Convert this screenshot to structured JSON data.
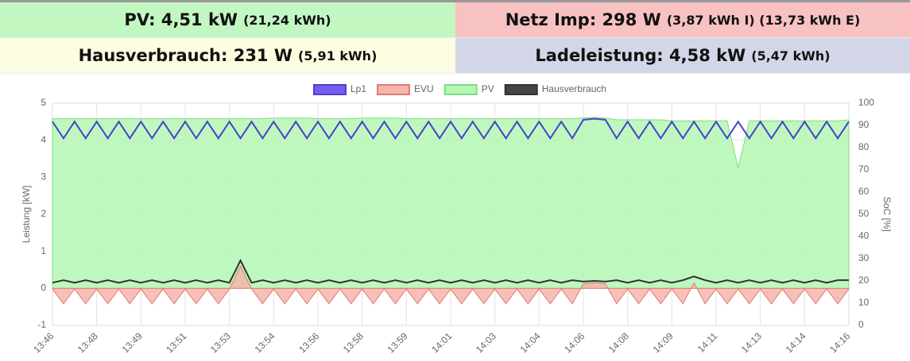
{
  "header": {
    "tiles": [
      {
        "main": "PV: 4,51 kW",
        "sub": "(21,24 kWh)",
        "color": "#c2f7c2"
      },
      {
        "main": "Netz Imp: 298 W",
        "sub": "(3,87 kWh I) (13,73 kWh E)",
        "color": "#f8c2c2"
      },
      {
        "main": "Hausverbrauch: 231 W",
        "sub": "(5,91 kWh)",
        "color": "#fdfde1"
      },
      {
        "main": "Ladeleistung: 4,58 kW",
        "sub": "(5,47 kWh)",
        "color": "#d2d6e6"
      }
    ]
  },
  "chart_data": {
    "type": "line",
    "ylabel": "Leistung [kW]",
    "y2label": "SoC [%]",
    "ylim": [
      -1,
      5
    ],
    "yticks": [
      -1,
      0,
      1,
      2,
      3,
      4,
      5
    ],
    "y2lim": [
      0,
      100
    ],
    "y2ticks": [
      0,
      10,
      20,
      30,
      40,
      50,
      60,
      70,
      80,
      90,
      100
    ],
    "grid": true,
    "legend": "top",
    "categories": [
      "13:46",
      null,
      null,
      null,
      "13:48",
      null,
      null,
      null,
      "13:49",
      null,
      null,
      null,
      "13:51",
      null,
      null,
      null,
      "13:53",
      null,
      null,
      null,
      "13:54",
      null,
      null,
      null,
      "13:56",
      null,
      null,
      null,
      "13:58",
      null,
      null,
      null,
      "13:59",
      null,
      null,
      null,
      "14:01",
      null,
      null,
      null,
      "14:03",
      null,
      null,
      null,
      "14:04",
      null,
      null,
      null,
      "14:06",
      null,
      null,
      null,
      "14:08",
      null,
      null,
      null,
      "14:09",
      null,
      null,
      null,
      "14:11",
      null,
      null,
      null,
      "14:13",
      null,
      null,
      null,
      "14:14",
      null,
      null,
      null,
      "14:16"
    ],
    "series": [
      {
        "name": "PV",
        "color": "#7fdc7f",
        "fill": "#b3f7b3",
        "area": true,
        "legend_order": 2,
        "values": [
          4.58,
          4.58,
          4.58,
          4.58,
          4.58,
          4.58,
          4.58,
          4.58,
          4.58,
          4.58,
          4.58,
          4.58,
          4.58,
          4.58,
          4.58,
          4.58,
          4.58,
          4.58,
          4.58,
          4.58,
          4.6,
          4.6,
          4.6,
          4.6,
          4.58,
          4.58,
          4.58,
          4.58,
          4.6,
          4.6,
          4.6,
          4.6,
          4.58,
          4.58,
          4.58,
          4.58,
          4.58,
          4.58,
          4.58,
          4.58,
          4.58,
          4.58,
          4.58,
          4.58,
          4.58,
          4.58,
          4.58,
          4.58,
          4.6,
          4.62,
          4.6,
          4.55,
          4.55,
          4.55,
          4.55,
          4.55,
          4.52,
          4.52,
          4.52,
          4.52,
          4.52,
          4.52,
          3.25,
          4.52,
          4.52,
          4.52,
          4.52,
          4.52,
          4.52,
          4.52,
          4.52,
          4.52,
          4.55
        ]
      },
      {
        "name": "EVU",
        "color": "#e07b70",
        "fill": "#f5b5ad",
        "area": true,
        "legend_order": 1,
        "values": [
          -0.02,
          -0.42,
          -0.02,
          -0.42,
          -0.02,
          -0.42,
          -0.02,
          -0.42,
          -0.02,
          -0.42,
          -0.02,
          -0.42,
          -0.02,
          -0.42,
          -0.02,
          -0.42,
          -0.02,
          0.6,
          -0.02,
          -0.42,
          -0.02,
          -0.42,
          -0.02,
          -0.42,
          -0.02,
          -0.42,
          -0.02,
          -0.42,
          -0.02,
          -0.42,
          -0.02,
          -0.42,
          -0.02,
          -0.42,
          -0.02,
          -0.42,
          -0.02,
          -0.42,
          -0.02,
          -0.42,
          -0.02,
          -0.42,
          -0.02,
          -0.42,
          -0.02,
          -0.42,
          -0.02,
          -0.42,
          0.12,
          0.15,
          0.12,
          -0.42,
          -0.02,
          -0.42,
          -0.02,
          -0.42,
          -0.02,
          -0.42,
          0.15,
          -0.42,
          -0.02,
          -0.42,
          -0.02,
          -0.42,
          -0.02,
          -0.42,
          -0.02,
          -0.42,
          -0.02,
          -0.42,
          -0.02,
          -0.42,
          -0.02
        ]
      },
      {
        "name": "Lp1",
        "color": "#4a3fcc",
        "fill": "#7a5cf0",
        "area": false,
        "legend_order": 0,
        "values": [
          4.5,
          4.05,
          4.5,
          4.05,
          4.5,
          4.05,
          4.5,
          4.05,
          4.5,
          4.05,
          4.5,
          4.05,
          4.5,
          4.05,
          4.5,
          4.05,
          4.5,
          4.05,
          4.5,
          4.05,
          4.5,
          4.05,
          4.5,
          4.05,
          4.5,
          4.05,
          4.5,
          4.05,
          4.5,
          4.05,
          4.5,
          4.05,
          4.5,
          4.05,
          4.5,
          4.05,
          4.5,
          4.05,
          4.5,
          4.05,
          4.5,
          4.05,
          4.5,
          4.05,
          4.5,
          4.05,
          4.5,
          4.05,
          4.55,
          4.58,
          4.55,
          4.05,
          4.5,
          4.05,
          4.5,
          4.05,
          4.5,
          4.05,
          4.5,
          4.05,
          4.5,
          4.05,
          4.5,
          4.05,
          4.5,
          4.05,
          4.5,
          4.05,
          4.5,
          4.05,
          4.5,
          4.05,
          4.5
        ]
      },
      {
        "name": "Hausverbrauch",
        "color": "#333333",
        "fill": "#444444",
        "area": false,
        "legend_order": 3,
        "values": [
          0.15,
          0.22,
          0.15,
          0.22,
          0.15,
          0.22,
          0.15,
          0.22,
          0.15,
          0.22,
          0.15,
          0.22,
          0.15,
          0.22,
          0.15,
          0.22,
          0.15,
          0.75,
          0.15,
          0.22,
          0.15,
          0.22,
          0.15,
          0.22,
          0.15,
          0.22,
          0.15,
          0.22,
          0.15,
          0.22,
          0.15,
          0.22,
          0.15,
          0.22,
          0.15,
          0.22,
          0.15,
          0.22,
          0.15,
          0.22,
          0.15,
          0.22,
          0.15,
          0.22,
          0.15,
          0.22,
          0.15,
          0.22,
          0.18,
          0.2,
          0.18,
          0.22,
          0.15,
          0.22,
          0.15,
          0.22,
          0.15,
          0.22,
          0.32,
          0.22,
          0.15,
          0.22,
          0.15,
          0.22,
          0.15,
          0.22,
          0.15,
          0.22,
          0.15,
          0.22,
          0.15,
          0.22,
          0.22
        ]
      }
    ]
  }
}
